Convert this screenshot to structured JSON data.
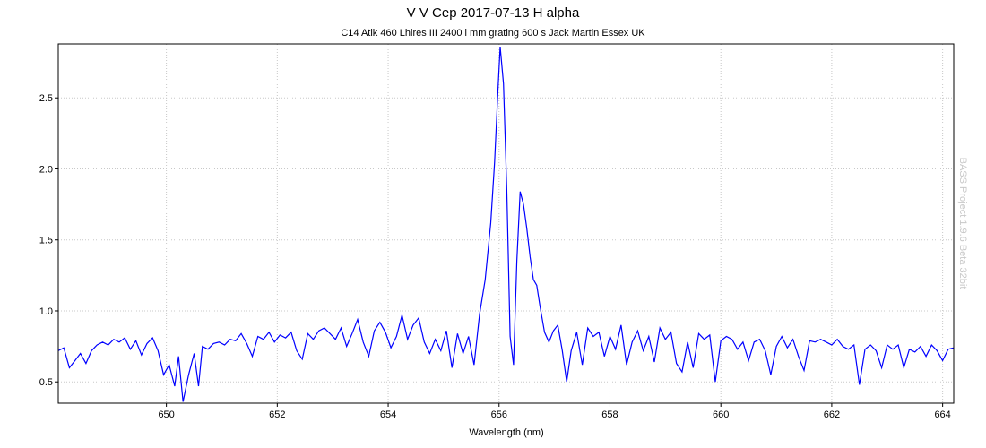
{
  "chart_data": {
    "type": "line",
    "title": "V V Cep 2017-07-13 H alpha",
    "subtitle": "C14 Atik 460 Lhires III 2400 l mm grating 600 s Jack Martin Essex UK",
    "xlabel": "Wavelength (nm)",
    "ylabel": "",
    "watermark": "BASS Project 1.9.6 Beta 32bit",
    "xlim": [
      648.05,
      664.2
    ],
    "ylim": [
      0.35,
      2.88
    ],
    "grid": true,
    "x_ticks": [
      650,
      652,
      654,
      656,
      658,
      660,
      662,
      664
    ],
    "y_ticks": [
      0.5,
      1.0,
      1.5,
      2.0,
      2.5
    ],
    "y_tick_labels": [
      "0.5",
      "1.0",
      "1.5",
      "2.0",
      "2.5"
    ],
    "line_color": "#0000ff",
    "series": [
      {
        "points": [
          [
            648.05,
            0.72
          ],
          [
            648.15,
            0.74
          ],
          [
            648.25,
            0.6
          ],
          [
            648.35,
            0.65
          ],
          [
            648.45,
            0.7
          ],
          [
            648.55,
            0.63
          ],
          [
            648.65,
            0.72
          ],
          [
            648.75,
            0.76
          ],
          [
            648.85,
            0.78
          ],
          [
            648.95,
            0.76
          ],
          [
            649.05,
            0.8
          ],
          [
            649.15,
            0.78
          ],
          [
            649.25,
            0.81
          ],
          [
            649.35,
            0.73
          ],
          [
            649.45,
            0.79
          ],
          [
            649.55,
            0.69
          ],
          [
            649.65,
            0.77
          ],
          [
            649.75,
            0.81
          ],
          [
            649.85,
            0.72
          ],
          [
            649.95,
            0.55
          ],
          [
            650.05,
            0.62
          ],
          [
            650.15,
            0.47
          ],
          [
            650.22,
            0.68
          ],
          [
            650.3,
            0.36
          ],
          [
            650.4,
            0.55
          ],
          [
            650.5,
            0.7
          ],
          [
            650.58,
            0.47
          ],
          [
            650.65,
            0.75
          ],
          [
            650.75,
            0.73
          ],
          [
            650.85,
            0.77
          ],
          [
            650.95,
            0.78
          ],
          [
            651.05,
            0.76
          ],
          [
            651.15,
            0.8
          ],
          [
            651.25,
            0.79
          ],
          [
            651.35,
            0.84
          ],
          [
            651.45,
            0.77
          ],
          [
            651.55,
            0.68
          ],
          [
            651.65,
            0.82
          ],
          [
            651.75,
            0.8
          ],
          [
            651.85,
            0.85
          ],
          [
            651.95,
            0.78
          ],
          [
            652.05,
            0.83
          ],
          [
            652.15,
            0.81
          ],
          [
            652.25,
            0.85
          ],
          [
            652.35,
            0.72
          ],
          [
            652.45,
            0.66
          ],
          [
            652.55,
            0.84
          ],
          [
            652.65,
            0.8
          ],
          [
            652.75,
            0.86
          ],
          [
            652.85,
            0.88
          ],
          [
            652.95,
            0.84
          ],
          [
            653.05,
            0.8
          ],
          [
            653.15,
            0.88
          ],
          [
            653.25,
            0.75
          ],
          [
            653.35,
            0.84
          ],
          [
            653.45,
            0.94
          ],
          [
            653.55,
            0.78
          ],
          [
            653.65,
            0.68
          ],
          [
            653.75,
            0.86
          ],
          [
            653.85,
            0.92
          ],
          [
            653.95,
            0.85
          ],
          [
            654.05,
            0.74
          ],
          [
            654.15,
            0.82
          ],
          [
            654.25,
            0.97
          ],
          [
            654.35,
            0.8
          ],
          [
            654.45,
            0.9
          ],
          [
            654.55,
            0.95
          ],
          [
            654.65,
            0.78
          ],
          [
            654.75,
            0.7
          ],
          [
            654.85,
            0.8
          ],
          [
            654.95,
            0.72
          ],
          [
            655.05,
            0.86
          ],
          [
            655.15,
            0.6
          ],
          [
            655.25,
            0.84
          ],
          [
            655.35,
            0.7
          ],
          [
            655.45,
            0.82
          ],
          [
            655.55,
            0.62
          ],
          [
            655.65,
            0.98
          ],
          [
            655.75,
            1.22
          ],
          [
            655.85,
            1.62
          ],
          [
            655.92,
            2.05
          ],
          [
            655.98,
            2.55
          ],
          [
            656.02,
            2.86
          ],
          [
            656.08,
            2.6
          ],
          [
            656.14,
            1.85
          ],
          [
            656.2,
            0.82
          ],
          [
            656.26,
            0.62
          ],
          [
            656.32,
            1.35
          ],
          [
            656.38,
            1.84
          ],
          [
            656.44,
            1.75
          ],
          [
            656.5,
            1.58
          ],
          [
            656.56,
            1.38
          ],
          [
            656.62,
            1.22
          ],
          [
            656.68,
            1.18
          ],
          [
            656.74,
            1.03
          ],
          [
            656.82,
            0.85
          ],
          [
            656.9,
            0.78
          ],
          [
            656.98,
            0.86
          ],
          [
            657.06,
            0.9
          ],
          [
            657.14,
            0.72
          ],
          [
            657.22,
            0.5
          ],
          [
            657.3,
            0.72
          ],
          [
            657.4,
            0.85
          ],
          [
            657.5,
            0.62
          ],
          [
            657.6,
            0.88
          ],
          [
            657.7,
            0.82
          ],
          [
            657.8,
            0.85
          ],
          [
            657.9,
            0.68
          ],
          [
            658.0,
            0.82
          ],
          [
            658.1,
            0.73
          ],
          [
            658.2,
            0.9
          ],
          [
            658.3,
            0.62
          ],
          [
            658.4,
            0.78
          ],
          [
            658.5,
            0.86
          ],
          [
            658.6,
            0.72
          ],
          [
            658.7,
            0.82
          ],
          [
            658.8,
            0.64
          ],
          [
            658.9,
            0.88
          ],
          [
            659.0,
            0.8
          ],
          [
            659.1,
            0.85
          ],
          [
            659.2,
            0.63
          ],
          [
            659.3,
            0.57
          ],
          [
            659.4,
            0.78
          ],
          [
            659.5,
            0.6
          ],
          [
            659.6,
            0.84
          ],
          [
            659.7,
            0.8
          ],
          [
            659.8,
            0.83
          ],
          [
            659.9,
            0.5
          ],
          [
            660.0,
            0.79
          ],
          [
            660.1,
            0.82
          ],
          [
            660.2,
            0.8
          ],
          [
            660.3,
            0.73
          ],
          [
            660.4,
            0.78
          ],
          [
            660.5,
            0.65
          ],
          [
            660.6,
            0.78
          ],
          [
            660.7,
            0.8
          ],
          [
            660.8,
            0.72
          ],
          [
            660.9,
            0.55
          ],
          [
            661.0,
            0.75
          ],
          [
            661.1,
            0.82
          ],
          [
            661.2,
            0.74
          ],
          [
            661.3,
            0.8
          ],
          [
            661.4,
            0.68
          ],
          [
            661.5,
            0.58
          ],
          [
            661.6,
            0.79
          ],
          [
            661.7,
            0.78
          ],
          [
            661.8,
            0.8
          ],
          [
            661.9,
            0.78
          ],
          [
            662.0,
            0.76
          ],
          [
            662.1,
            0.8
          ],
          [
            662.2,
            0.75
          ],
          [
            662.3,
            0.73
          ],
          [
            662.4,
            0.76
          ],
          [
            662.5,
            0.48
          ],
          [
            662.6,
            0.73
          ],
          [
            662.7,
            0.76
          ],
          [
            662.8,
            0.72
          ],
          [
            662.9,
            0.6
          ],
          [
            663.0,
            0.76
          ],
          [
            663.1,
            0.73
          ],
          [
            663.2,
            0.76
          ],
          [
            663.3,
            0.6
          ],
          [
            663.4,
            0.73
          ],
          [
            663.5,
            0.71
          ],
          [
            663.6,
            0.75
          ],
          [
            663.7,
            0.68
          ],
          [
            663.8,
            0.76
          ],
          [
            663.9,
            0.72
          ],
          [
            664.0,
            0.65
          ],
          [
            664.1,
            0.73
          ],
          [
            664.2,
            0.74
          ]
        ]
      }
    ]
  }
}
